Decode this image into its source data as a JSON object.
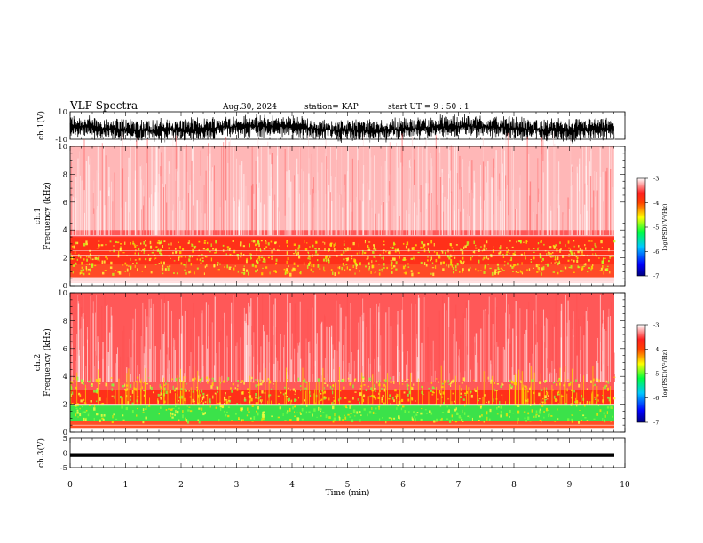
{
  "header": {
    "title": "VLF Spectra",
    "date": "Aug.30, 2024",
    "station": "station= KAP",
    "start": "start  UT  =   9  : 50 : 1"
  },
  "chart_data": [
    {
      "type": "line",
      "panel": "ch1-waveform",
      "ylabel": "ch.1(V)",
      "ylim": [
        -10,
        10
      ],
      "ytick_labels": [
        "-10",
        "10"
      ]
    },
    {
      "type": "heatmap",
      "panel": "ch1-spectrogram",
      "ylabel_top": "ch.1",
      "ylabel": "Frequency (kHz)",
      "ylim": [
        0,
        10
      ],
      "ytick_labels": [
        "0",
        "2",
        "4",
        "6",
        "8",
        "10"
      ],
      "colorbar": {
        "label": "log(PSD)(V²/Hz)",
        "range": [
          -7,
          -3
        ],
        "tick_labels": [
          "-3",
          "-4",
          "-5",
          "-6",
          "-7"
        ]
      }
    },
    {
      "type": "heatmap",
      "panel": "ch2-spectrogram",
      "ylabel_top": "ch.2",
      "ylabel": "Frequency (kHz)",
      "ylim": [
        0,
        10
      ],
      "ytick_labels": [
        "0",
        "2",
        "4",
        "6",
        "8",
        "10"
      ],
      "colorbar": {
        "label": "log(PSD)(V²/Hz)",
        "range": [
          -7,
          -3
        ],
        "tick_labels": [
          "-3",
          "-4",
          "-5",
          "-6",
          "-7"
        ]
      }
    },
    {
      "type": "line",
      "panel": "ch3-waveform",
      "ylabel": "ch.3(V)",
      "ylim": [
        -5,
        5
      ],
      "ytick_labels": [
        "-5",
        "0",
        "5"
      ]
    }
  ],
  "xaxis": {
    "label": "Time (min)",
    "xlim": [
      0,
      10
    ],
    "tick_labels": [
      "0",
      "1",
      "2",
      "3",
      "4",
      "5",
      "6",
      "7",
      "8",
      "9",
      "10"
    ]
  }
}
